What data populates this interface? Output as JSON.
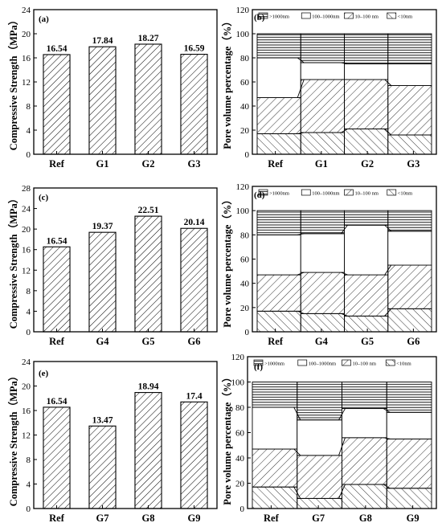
{
  "figure": {
    "left_ylabel": "Compressive Strength（MPa）",
    "right_ylabel": "Pore volume percentage（%）",
    "legend": [
      ">1000nm",
      "100–1000nm",
      "10–100 nm",
      "<10nm"
    ],
    "colors": {
      "axis": "#000000",
      "bar_fill": "#ffffff",
      "hatch": "#000000"
    }
  },
  "chart_data": [
    {
      "type": "bar",
      "panel": "(a)",
      "categories": [
        "Ref",
        "G1",
        "G2",
        "G3"
      ],
      "values": [
        16.54,
        17.84,
        18.27,
        16.59
      ],
      "value_labels": [
        "16.54",
        "17.84",
        "18.27",
        "16.59"
      ],
      "ylabel": "Compressive Strength（MPa）",
      "ylim": [
        0,
        24
      ],
      "yticks": [
        0,
        4,
        8,
        12,
        16,
        20,
        24
      ]
    },
    {
      "type": "bar",
      "panel": "(b)",
      "stacked": true,
      "categories": [
        "Ref",
        "G1",
        "G2",
        "G3"
      ],
      "ylabel": "Pore volume percentage（%）",
      "ylim": [
        0,
        120
      ],
      "yticks": [
        0,
        20,
        40,
        60,
        80,
        100,
        120
      ],
      "series": [
        {
          "name": "<10nm",
          "values": [
            17,
            18,
            21,
            16
          ]
        },
        {
          "name": "10–100 nm",
          "values": [
            30,
            44,
            41,
            41
          ]
        },
        {
          "name": "100–1000nm",
          "values": [
            33,
            14,
            13,
            18
          ]
        },
        {
          "name": ">1000nm",
          "values": [
            20,
            24,
            25,
            25
          ]
        }
      ]
    },
    {
      "type": "bar",
      "panel": "(c)",
      "categories": [
        "Ref",
        "G4",
        "G5",
        "G6"
      ],
      "values": [
        16.54,
        19.37,
        22.51,
        20.14
      ],
      "value_labels": [
        "16.54",
        "19.37",
        "22.51",
        "20.14"
      ],
      "ylabel": "Compressive Strength（MPa）",
      "ylim": [
        0,
        28
      ],
      "yticks": [
        0,
        4,
        8,
        12,
        16,
        20,
        24,
        28
      ]
    },
    {
      "type": "bar",
      "panel": "(d)",
      "stacked": true,
      "categories": [
        "Ref",
        "G4",
        "G5",
        "G6"
      ],
      "ylabel": "Pore volume percentage（%）",
      "ylim": [
        0,
        120
      ],
      "yticks": [
        0,
        20,
        40,
        60,
        80,
        100,
        120
      ],
      "series": [
        {
          "name": "<10nm",
          "values": [
            17,
            15,
            13,
            19
          ]
        },
        {
          "name": "10–100 nm",
          "values": [
            30,
            34,
            34,
            36
          ]
        },
        {
          "name": "100–1000nm",
          "values": [
            33,
            32,
            41,
            28
          ]
        },
        {
          "name": ">1000nm",
          "values": [
            20,
            19,
            12,
            17
          ]
        }
      ]
    },
    {
      "type": "bar",
      "panel": "(e)",
      "categories": [
        "Ref",
        "G7",
        "G8",
        "G9"
      ],
      "values": [
        16.54,
        13.47,
        18.94,
        17.4
      ],
      "value_labels": [
        "16.54",
        "13.47",
        "18.94",
        "17.4"
      ],
      "ylabel": "Compressive Strength（MPa）",
      "ylim": [
        0,
        24
      ],
      "yticks": [
        0,
        4,
        8,
        12,
        16,
        20,
        24
      ]
    },
    {
      "type": "bar",
      "panel": "(f)",
      "stacked": true,
      "categories": [
        "Ref",
        "G7",
        "G8",
        "G9"
      ],
      "ylabel": "Pore volume percentage（%）",
      "ylim": [
        0,
        120
      ],
      "yticks": [
        0,
        20,
        40,
        60,
        80,
        100,
        120
      ],
      "series": [
        {
          "name": "<10nm",
          "values": [
            17,
            8,
            19,
            16
          ]
        },
        {
          "name": "10–100 nm",
          "values": [
            30,
            34,
            37,
            39
          ]
        },
        {
          "name": "100–1000nm",
          "values": [
            33,
            28,
            23,
            21
          ]
        },
        {
          "name": ">1000nm",
          "values": [
            20,
            30,
            21,
            24
          ]
        }
      ]
    }
  ]
}
